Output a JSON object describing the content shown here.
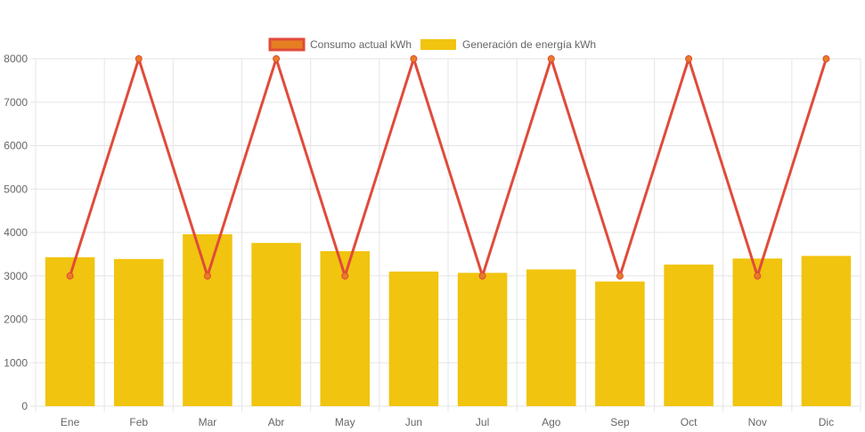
{
  "chart_data": {
    "type": "bar",
    "categories": [
      "Ene",
      "Feb",
      "Mar",
      "Abr",
      "May",
      "Jun",
      "Jul",
      "Ago",
      "Sep",
      "Oct",
      "Nov",
      "Dic"
    ],
    "series": [
      {
        "name": "Consumo actual kWh",
        "type": "line",
        "values": [
          3000,
          8000,
          3000,
          8000,
          3000,
          8000,
          3000,
          8000,
          3000,
          8000,
          3000,
          8000
        ],
        "color": "#e04b3a",
        "point_color": "#e67e22"
      },
      {
        "name": "Generación de energía kWh",
        "type": "bar",
        "values": [
          3430,
          3390,
          3960,
          3760,
          3570,
          3100,
          3070,
          3150,
          2870,
          3260,
          3400,
          3460
        ],
        "color": "#f1c40f"
      }
    ],
    "ylim": [
      0,
      8000
    ],
    "yticks": [
      0,
      1000,
      2000,
      3000,
      4000,
      5000,
      6000,
      7000,
      8000
    ],
    "grid": true,
    "legend": "top-center"
  }
}
